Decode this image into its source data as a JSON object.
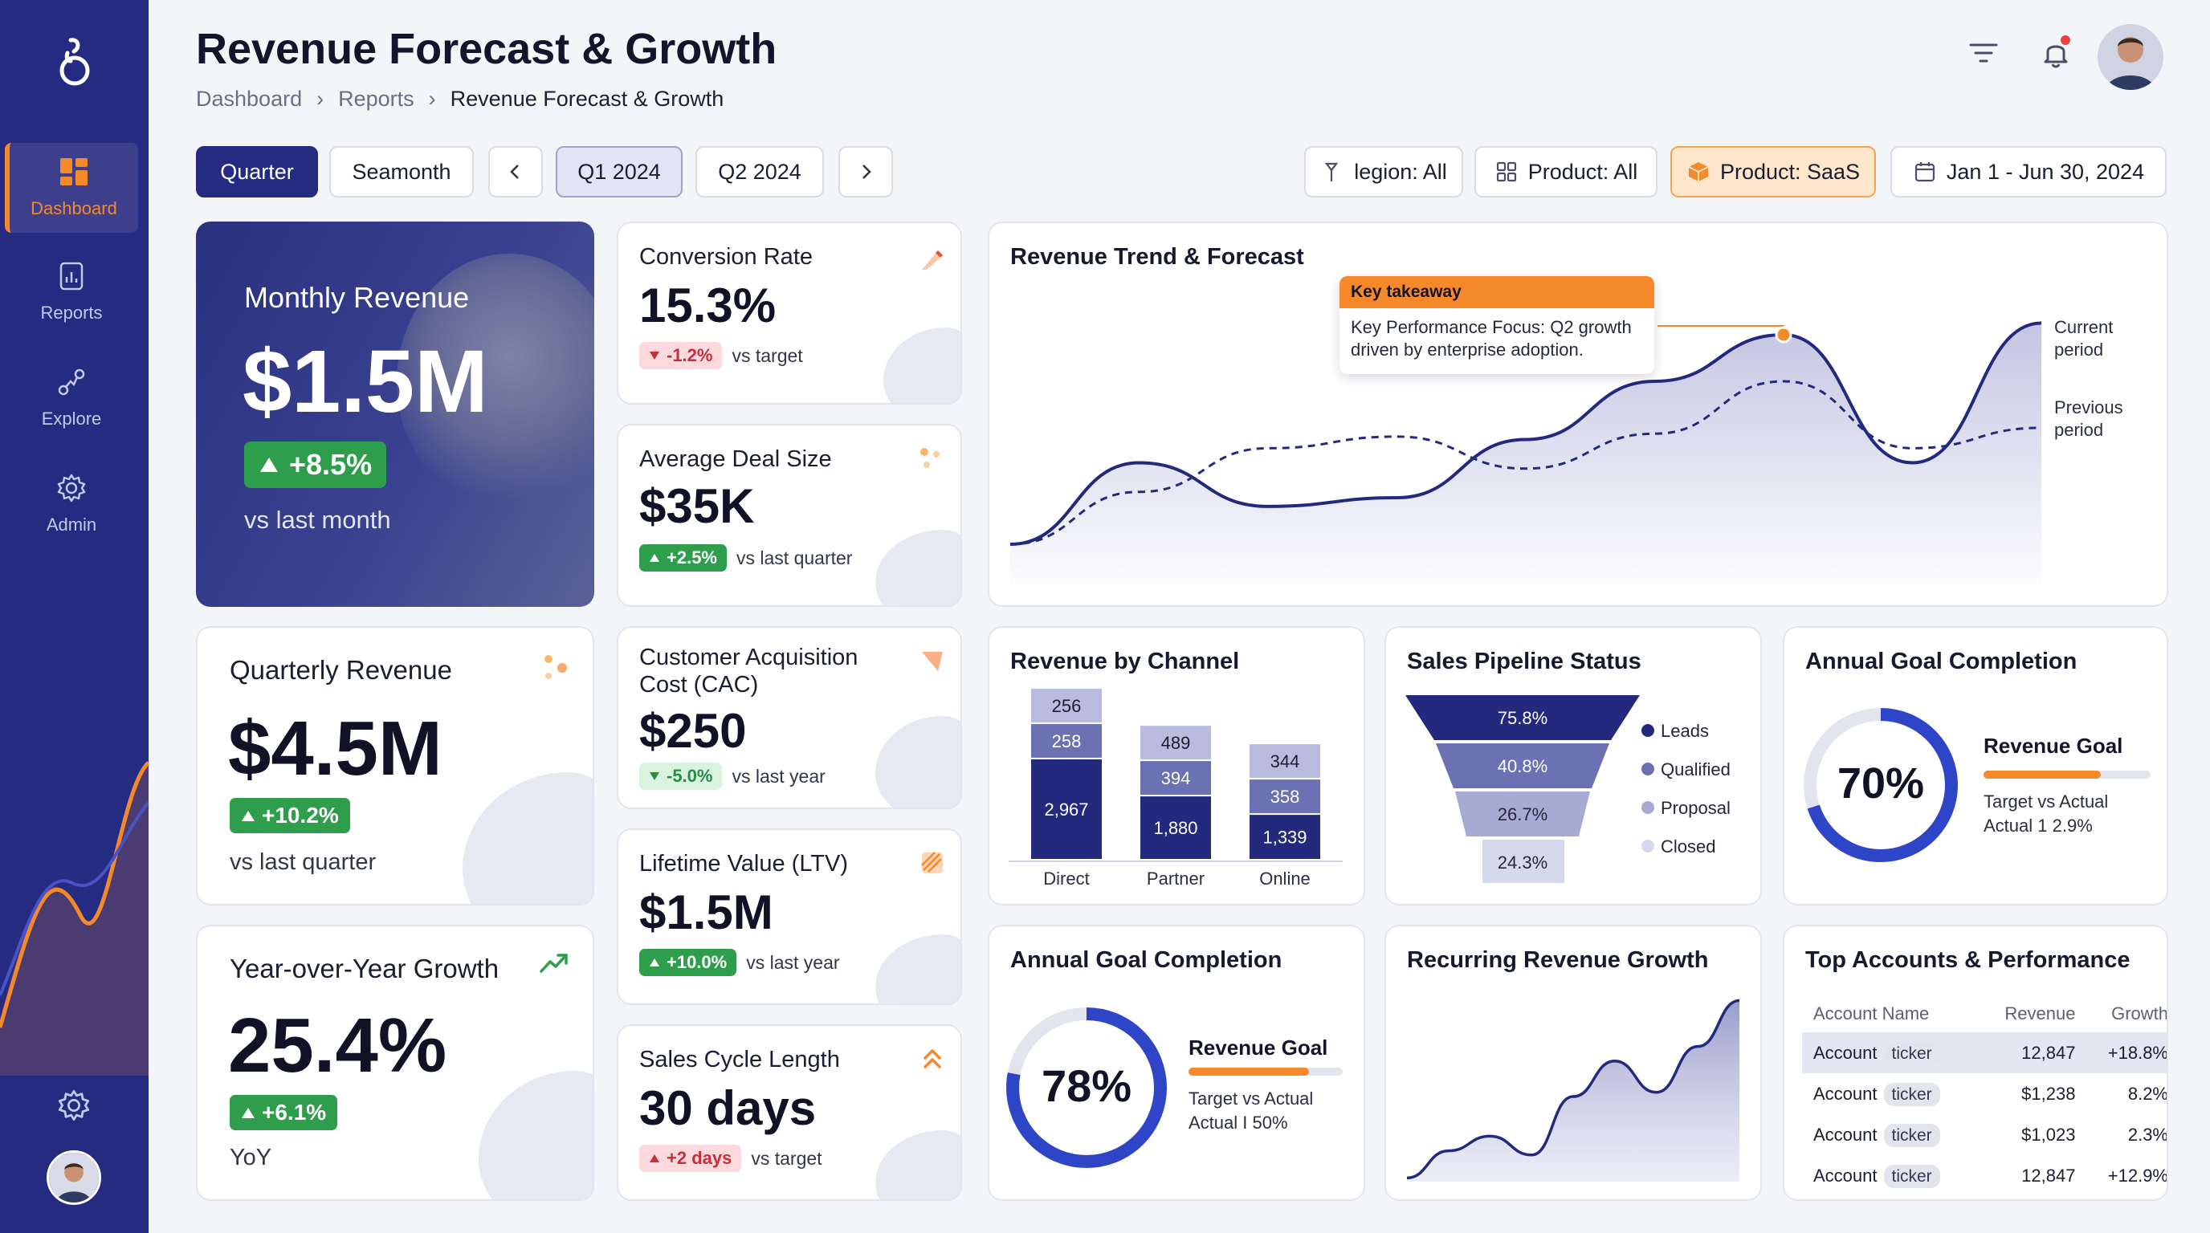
{
  "header": {
    "title": "Revenue Forecast & Growth",
    "breadcrumb": [
      "Dashboard",
      "Reports",
      "Revenue Forecast & Growth"
    ]
  },
  "sidebar": {
    "items": [
      {
        "label": "Dashboard",
        "icon": "dashboard-icon",
        "active": true
      },
      {
        "label": "Reports",
        "icon": "reports-icon"
      },
      {
        "label": "Explore",
        "icon": "explore-icon"
      },
      {
        "label": "Admin",
        "icon": "admin-gear-icon"
      }
    ]
  },
  "controls": {
    "quarter": "Quarter",
    "seamonth": "Seamonth",
    "q1": "Q1 2024",
    "q2": "Q2 2024",
    "region": "legion: All",
    "product_all": "Product: All",
    "product_saas": "Product: SaaS",
    "date_range": "Jan 1 - Jun 30, 2024"
  },
  "monthly": {
    "title": "Monthly Revenue",
    "value": "$1.5M",
    "change": "+8.5%",
    "compare": "vs last month"
  },
  "conversion": {
    "title": "Conversion Rate",
    "value": "15.3%",
    "change": "-1.2%",
    "compare": "vs target"
  },
  "deal": {
    "title": "Average Deal Size",
    "value": "$35K",
    "change": "+2.5%",
    "compare": "vs last quarter"
  },
  "quarterly": {
    "title": "Quarterly Revenue",
    "value": "$4.5M",
    "change": "+10.2%",
    "compare": "vs last quarter"
  },
  "cac": {
    "title_line1": "Customer Acquisition",
    "title_line2": "Cost (CAC)",
    "value": "$250",
    "change": "-5.0%",
    "compare": "vs last year"
  },
  "ltv": {
    "title": "Lifetime Value (LTV)",
    "value": "$1.5M",
    "change": "+10.0%",
    "compare": "vs last year"
  },
  "yoy": {
    "title": "Year-over-Year Growth",
    "value": "25.4%",
    "change": "+6.1%",
    "compare": "YoY"
  },
  "cycle": {
    "title": "Sales Cycle Length",
    "value": "30 days",
    "change": "+2 days",
    "compare": "vs target"
  },
  "trend": {
    "title": "Revenue Trend & Forecast",
    "callout_title": "Key takeaway",
    "callout_line1": "Key Performance Focus: Q2 growth",
    "callout_line2": "driven by enterprise adoption.",
    "legend_current_1": "Current",
    "legend_current_2": "period",
    "legend_previous_1": "Previous",
    "legend_previous_2": "period"
  },
  "channel": {
    "title": "Revenue by Channel"
  },
  "pipeline": {
    "title": "Sales Pipeline Status",
    "stages": [
      {
        "label": "Leads",
        "value": "75.8%",
        "color": "#232a7e"
      },
      {
        "label": "Qualified",
        "value": "40.8%",
        "color": "#6c71b4"
      },
      {
        "label": "Proposal",
        "value": "26.7%",
        "color": "#a7aad2"
      },
      {
        "label": "Closed",
        "value": "24.3%",
        "color": "#d6d8ec"
      }
    ]
  },
  "annual_goal_top": {
    "title": "Annual Goal Completion",
    "percent": "70%",
    "goal_label": "Revenue Goal",
    "target_label": "Target vs Actual",
    "actual_label": "Actual 1 2.9%",
    "fill": 0.7
  },
  "annual_goal_bottom": {
    "title": "Annual Goal Completion",
    "percent": "78%",
    "goal_label": "Revenue Goal",
    "target_label": "Target vs Actual",
    "actual_label": "Actual I 50%",
    "fill": 0.78
  },
  "recurring": {
    "title": "Recurring Revenue Growth"
  },
  "accounts": {
    "title": "Top Accounts & Performance",
    "columns": [
      "Account Name",
      "Revenue",
      "Growth"
    ],
    "rows": [
      {
        "name": "Account",
        "ticker": "ticker",
        "revenue": "12,847",
        "growth": "+18.8%"
      },
      {
        "name": "Account",
        "ticker": "ticker",
        "revenue": "$1,238",
        "growth": "8.2%"
      },
      {
        "name": "Account",
        "ticker": "ticker",
        "revenue": "$1,023",
        "growth": "2.3%"
      },
      {
        "name": "Account",
        "ticker": "ticker",
        "revenue": "12,847",
        "growth": "+12.9%"
      }
    ]
  },
  "chart_data": [
    {
      "type": "area",
      "title": "Revenue Trend & Forecast",
      "series": [
        {
          "name": "Current period",
          "values": [
            0,
            28,
            13,
            16,
            36,
            56,
            72,
            28,
            76
          ]
        },
        {
          "name": "Previous period",
          "values": [
            0,
            18,
            33,
            37,
            26,
            38,
            56,
            33,
            40
          ]
        }
      ]
    },
    {
      "type": "bar",
      "title": "Revenue by Channel",
      "categories": [
        "Direct",
        "Partner",
        "Online"
      ],
      "series": [
        {
          "name": "base",
          "values": [
            2967,
            1880,
            1339
          ],
          "color": "#232a7e"
        },
        {
          "name": "middle",
          "values": [
            258,
            394,
            358
          ],
          "color": "#6c71b4"
        },
        {
          "name": "top",
          "values": [
            256,
            489,
            344
          ],
          "color": "#b9bcdf"
        }
      ]
    },
    {
      "type": "area",
      "title": "Recurring Revenue Growth",
      "series": [
        {
          "name": "",
          "values": [
            1,
            14,
            21,
            12,
            40,
            57,
            42,
            64,
            86
          ]
        }
      ]
    }
  ]
}
